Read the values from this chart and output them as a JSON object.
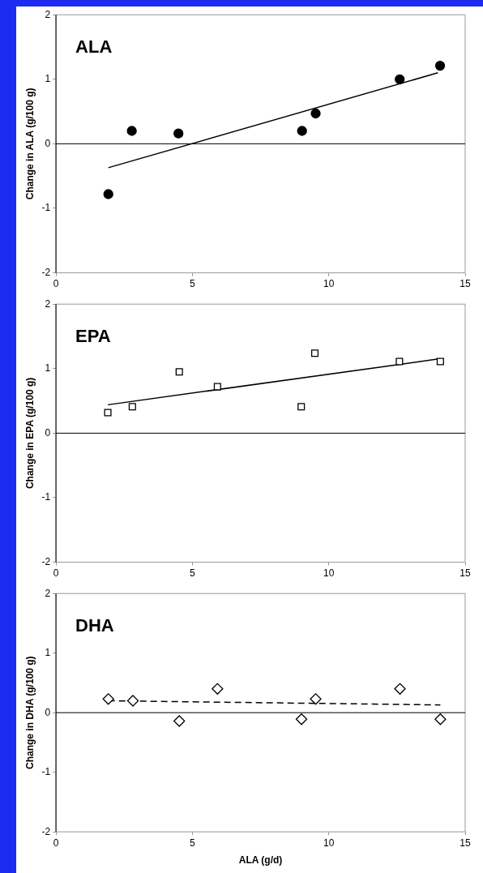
{
  "chart_data": [
    {
      "type": "scatter",
      "title": "ALA",
      "ylabel": "Change in ALA (g/100 g)",
      "xlim": [
        0,
        15
      ],
      "xticks": [
        0,
        5,
        10,
        15
      ],
      "ylim": [
        -2,
        2
      ],
      "yticks": [
        -2,
        -1,
        0,
        1,
        2
      ],
      "grid": false,
      "legend": false,
      "ref_lines": [
        {
          "axis": "y",
          "value": 0,
          "color": "#000000"
        }
      ],
      "series": [
        {
          "type": "scatter",
          "marker": "circle",
          "color": "#000000",
          "x": [
            1.92,
            2.78,
            4.49,
            9.02,
            9.52,
            12.6,
            14.08
          ],
          "values": [
            -0.78,
            0.2,
            0.16,
            0.2,
            0.47,
            1.0,
            1.21
          ]
        },
        {
          "type": "line",
          "marker": "none",
          "line_style": "solid",
          "color": "#000000",
          "x": [
            1.92,
            14.0
          ],
          "values": [
            -0.37,
            1.1
          ]
        }
      ]
    },
    {
      "type": "scatter",
      "title": "EPA",
      "ylabel": "Change in EPA (g/100 g)",
      "xlim": [
        0,
        15
      ],
      "xticks": [
        0,
        5,
        10,
        15
      ],
      "ylim": [
        -2,
        2
      ],
      "yticks": [
        -2,
        -1,
        0,
        1,
        2
      ],
      "grid": false,
      "legend": false,
      "ref_lines": [
        {
          "axis": "y",
          "value": 0,
          "color": "#000000"
        }
      ],
      "series": [
        {
          "type": "scatter",
          "marker": "square",
          "color": "#000000",
          "x": [
            1.9,
            2.8,
            4.52,
            5.92,
            8.99,
            9.49,
            12.59,
            14.09
          ],
          "values": [
            0.32,
            0.41,
            0.95,
            0.72,
            0.41,
            1.24,
            1.11,
            1.11
          ]
        },
        {
          "type": "line",
          "marker": "none",
          "line_style": "solid",
          "color": "#000000",
          "x": [
            1.9,
            14.03
          ],
          "values": [
            0.44,
            1.15
          ]
        }
      ]
    },
    {
      "type": "scatter",
      "title": "DHA",
      "xlabel": "ALA (g/d)",
      "ylabel": "Change in DHA (g/100 g)",
      "xlim": [
        0,
        15
      ],
      "xticks": [
        0,
        5,
        10,
        15
      ],
      "ylim": [
        -2,
        2
      ],
      "yticks": [
        -2,
        -1,
        0,
        1,
        2
      ],
      "grid": false,
      "legend": false,
      "ref_lines": [
        {
          "axis": "y",
          "value": 0,
          "color": "#000000"
        }
      ],
      "series": [
        {
          "type": "scatter",
          "marker": "diamond",
          "color": "#000000",
          "x": [
            1.92,
            2.82,
            4.52,
            5.92,
            9.0,
            9.52,
            12.61,
            14.09
          ],
          "values": [
            0.23,
            0.2,
            -0.14,
            0.4,
            -0.11,
            0.23,
            0.4,
            -0.11
          ]
        },
        {
          "type": "line",
          "marker": "none",
          "line_style": "dashed",
          "color": "#000000",
          "x": [
            1.92,
            14.09
          ],
          "values": [
            0.2,
            0.13
          ]
        }
      ]
    }
  ]
}
